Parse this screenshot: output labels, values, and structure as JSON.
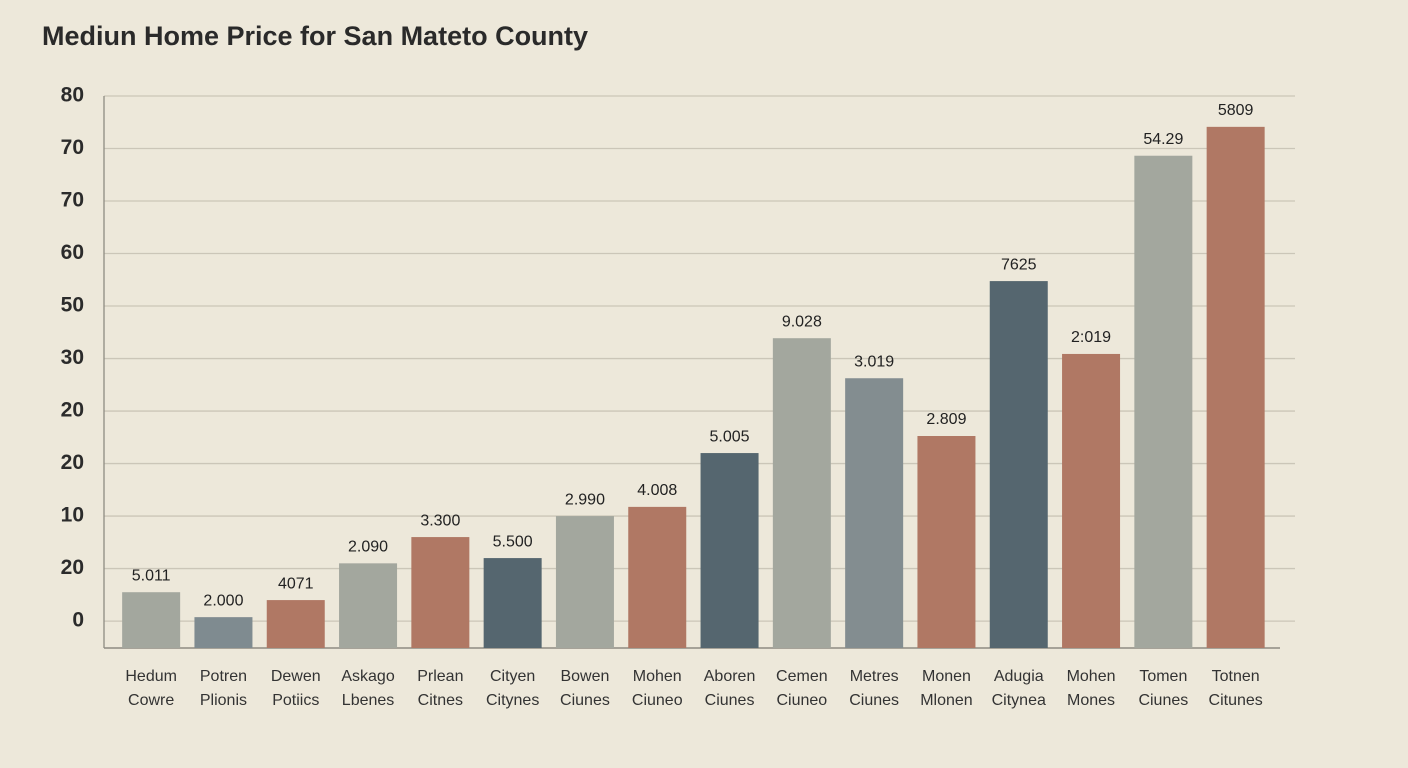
{
  "chart_data": {
    "type": "bar",
    "title": "Mediun Home Price for San Mateto County",
    "categories": [
      [
        "Hedum",
        "Cowre"
      ],
      [
        "Potren",
        "Plionis"
      ],
      [
        "Dewen",
        "Potiics"
      ],
      [
        "Askago",
        "Lbenes"
      ],
      [
        "Prlean",
        "Citnes"
      ],
      [
        "Cityen",
        "Citynes"
      ],
      [
        "Bowen",
        "Ciunes"
      ],
      [
        "Mohen",
        "Ciuneo"
      ],
      [
        "Aboren",
        "Ciunes"
      ],
      [
        "Cemen",
        "Ciuneo"
      ],
      [
        "Metres",
        "Ciunes"
      ],
      [
        "Monen",
        "Mlonen"
      ],
      [
        "Adugia",
        "Citynea"
      ],
      [
        "Mohen",
        "Mones"
      ],
      [
        "Tomen",
        "Ciunes"
      ],
      [
        "Totnen",
        "Citunes"
      ]
    ],
    "values": [
      4.4,
      0.6,
      3.2,
      8.8,
      12.8,
      9.6,
      16,
      17.4,
      25.6,
      43.1,
      37,
      28.2,
      51.8,
      40.7,
      70.9,
      75.3
    ],
    "annotations": [
      "5.011",
      "2.000",
      "4071",
      "2.090",
      "3.300",
      "5.500",
      "2.990",
      "4.008",
      "5.005",
      "9.028",
      "3.019",
      "2.809",
      "7625",
      "2:019",
      "54.29",
      "5809"
    ],
    "colors": [
      "#a3a79e",
      "#7f8b90",
      "#b07864",
      "#a3a79e",
      "#b07864",
      "#55666f",
      "#a3a79e",
      "#b07864",
      "#55666f",
      "#a3a79e",
      "#838d90",
      "#b07864",
      "#55666f",
      "#b07864",
      "#a3a79e",
      "#b07864"
    ],
    "ylim": [
      -4.1,
      80
    ],
    "yticks": [
      0,
      {
        "value": 8,
        "label": "20"
      },
      {
        "value": 16,
        "label": "10"
      },
      {
        "value": 24,
        "label": "20"
      },
      {
        "value": 32,
        "label": "20"
      },
      {
        "value": 40,
        "label": "30"
      },
      {
        "value": 48,
        "label": "50"
      },
      {
        "value": 56,
        "label": "60"
      },
      {
        "value": 64,
        "label": "70"
      },
      {
        "value": 72,
        "label": "70"
      },
      80
    ],
    "grid": true
  }
}
